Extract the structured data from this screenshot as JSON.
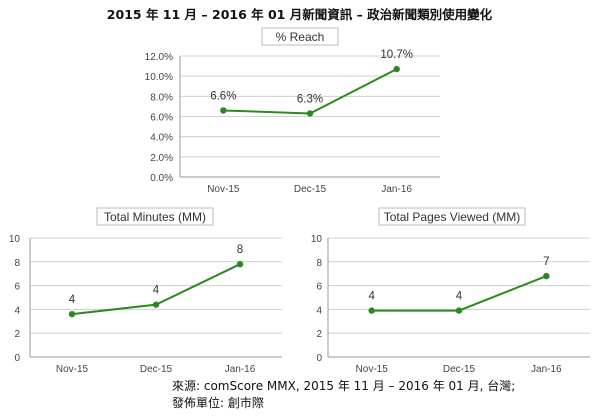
{
  "title": "2015 年 11 月 – 2016 年 01 月新聞資訊 – 政治新聞類別使用變化",
  "colors": {
    "line": "#2a8a1f",
    "grid": "#d0d0d0",
    "axis": "#999999",
    "title_box": "#bbbbbb"
  },
  "chart_data": [
    {
      "type": "line",
      "title": "% Reach",
      "categories": [
        "Nov-15",
        "Dec-15",
        "Jan-16"
      ],
      "values": [
        6.6,
        6.3,
        10.7
      ],
      "data_labels": [
        "6.6%",
        "6.3%",
        "10.7%"
      ],
      "y_ticks": [
        "0.0%",
        "2.0%",
        "4.0%",
        "6.0%",
        "8.0%",
        "10.0%",
        "12.0%"
      ],
      "ylim": [
        0,
        12
      ],
      "grid": true,
      "legend": "none"
    },
    {
      "type": "line",
      "title": "Total Minutes (MM)",
      "categories": [
        "Nov-15",
        "Dec-15",
        "Jan-16"
      ],
      "values": [
        3.6,
        4.4,
        7.8
      ],
      "data_labels": [
        "4",
        "4",
        "8"
      ],
      "y_ticks": [
        "0",
        "2",
        "4",
        "6",
        "8",
        "10"
      ],
      "ylim": [
        0,
        10
      ],
      "grid": true,
      "legend": "none"
    },
    {
      "type": "line",
      "title": "Total Pages Viewed (MM)",
      "categories": [
        "Nov-15",
        "Dec-15",
        "Jan-16"
      ],
      "values": [
        3.9,
        3.9,
        6.8
      ],
      "data_labels": [
        "4",
        "4",
        "7"
      ],
      "y_ticks": [
        "0",
        "2",
        "4",
        "6",
        "8",
        "10"
      ],
      "ylim": [
        0,
        10
      ],
      "grid": true,
      "legend": "none"
    }
  ],
  "source": {
    "line1": "來源: comScore MMX, 2015 年 11 月 – 2016 年 01 月, 台灣;",
    "line2": "發佈單位: 創市際"
  }
}
